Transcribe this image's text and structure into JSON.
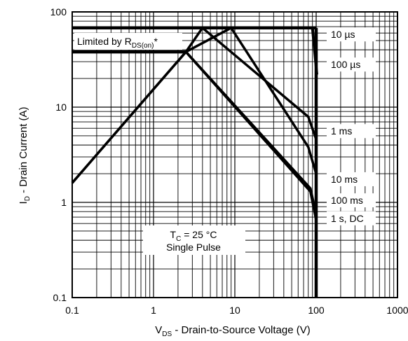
{
  "chart_data": {
    "type": "line",
    "xlabel": {
      "main": "V",
      "sub": "DS",
      "rest": " - Drain-to-Source Voltage (V)"
    },
    "ylabel": {
      "main": "I",
      "sub": "D",
      "rest": " - Drain Current (A)"
    },
    "x_scale": "log",
    "y_scale": "log",
    "xlim": [
      0.1,
      1000
    ],
    "ylim": [
      0.1,
      100
    ],
    "x_ticks": [
      {
        "value": 0.1,
        "label": "0.1"
      },
      {
        "value": 1,
        "label": "1"
      },
      {
        "value": 10,
        "label": "10"
      },
      {
        "value": 100,
        "label": "100"
      },
      {
        "value": 1000,
        "label": "1000"
      }
    ],
    "y_ticks": [
      {
        "value": 0.1,
        "label": "0.1"
      },
      {
        "value": 1,
        "label": "1"
      },
      {
        "value": 10,
        "label": "10"
      },
      {
        "value": 100,
        "label": "100"
      }
    ],
    "grid": true,
    "limit_label": {
      "main": "Limited by R",
      "sub": "DS(on)",
      "rest": "*"
    },
    "conditions": {
      "line1": {
        "main": "T",
        "sub": "C",
        "rest": " = 25 °C"
      },
      "line2": "Single Pulse"
    },
    "series": [
      {
        "name": "10 µs",
        "x": [
          4,
          90,
          102
        ],
        "y": [
          68,
          68,
          22
        ]
      },
      {
        "name": "100 µs",
        "x": [
          2.5,
          4,
          80,
          100
        ],
        "y": [
          38,
          68,
          7.9,
          4.6
        ]
      },
      {
        "name": "1 ms",
        "x": [
          2.5,
          9,
          80,
          100
        ],
        "y": [
          38,
          68,
          3.8,
          2.0
        ]
      },
      {
        "name": "10 ms",
        "x": [
          0.1,
          2.5,
          85,
          100
        ],
        "y": [
          1.6,
          38,
          1.4,
          0.75
        ]
      },
      {
        "name": "100 ms",
        "x": [
          0.1,
          2.5,
          85,
          100
        ],
        "y": [
          1.6,
          38,
          1.35,
          0.7
        ]
      },
      {
        "name": "1 s, DC",
        "x": [
          2.5,
          85,
          100
        ],
        "y": [
          38,
          1.3,
          0.65
        ]
      }
    ],
    "limit_lines": [
      {
        "x": [
          0.1,
          2.5
        ],
        "y": [
          38,
          38
        ]
      },
      {
        "x": [
          0.1,
          100
        ],
        "y": [
          68,
          68
        ]
      },
      {
        "x": [
          100,
          100
        ],
        "y": [
          0.1,
          68
        ]
      }
    ],
    "legend_labels": [
      "10 µs",
      "100 µs",
      "1 ms",
      "10 ms",
      "100 ms",
      "1 s, DC"
    ],
    "legend_label_values": [
      58,
      28,
      5.6,
      1.75,
      1.05,
      0.68
    ]
  }
}
